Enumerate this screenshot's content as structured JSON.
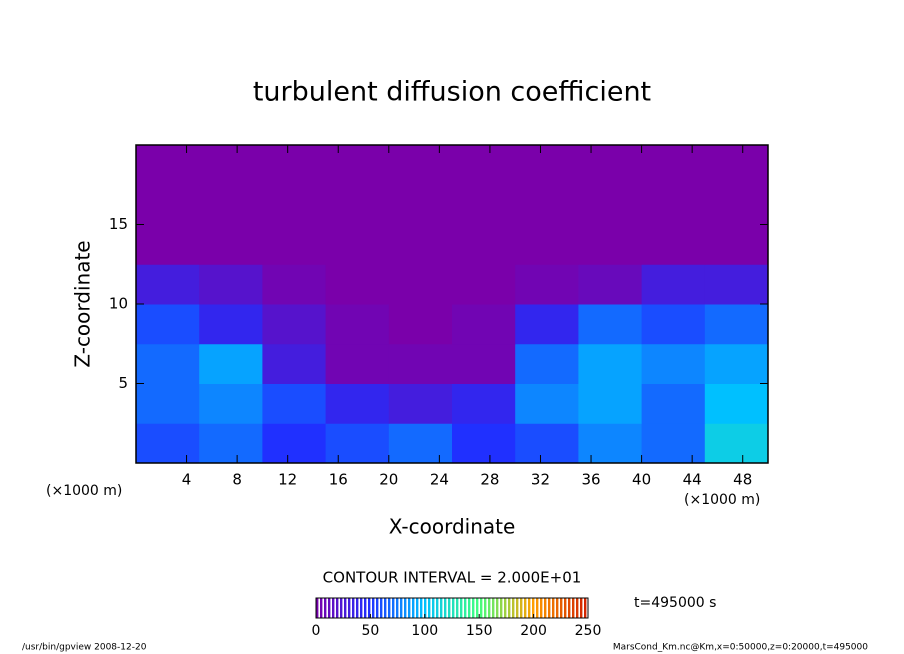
{
  "chart_data": {
    "type": "contour",
    "title": "turbulent diffusion coefficient",
    "xlabel": "X-coordinate",
    "ylabel": "Z-coordinate",
    "x_unit_left": "(×1000 m)",
    "x_unit_right": "(×1000 m)",
    "xlim": [
      0,
      50
    ],
    "ylim": [
      0,
      20
    ],
    "xticks": [
      4,
      8,
      12,
      16,
      20,
      24,
      28,
      32,
      36,
      40,
      44,
      48
    ],
    "yticks": [
      5,
      10,
      15
    ],
    "x": [
      2.5,
      7.5,
      12.5,
      17.5,
      22.5,
      27.5,
      32.5,
      37.5,
      42.5,
      47.5
    ],
    "y": [
      1.25,
      3.75,
      6.25,
      8.75,
      11.25,
      13.75,
      16.25,
      18.75
    ],
    "z": [
      [
        60,
        70,
        50,
        60,
        70,
        50,
        60,
        80,
        70,
        110
      ],
      [
        70,
        80,
        60,
        40,
        30,
        40,
        80,
        90,
        70,
        100
      ],
      [
        70,
        90,
        30,
        5,
        5,
        5,
        70,
        90,
        80,
        90
      ],
      [
        60,
        40,
        20,
        5,
        0,
        5,
        40,
        70,
        60,
        70
      ],
      [
        30,
        20,
        5,
        0,
        0,
        0,
        5,
        10,
        30,
        30
      ],
      [
        0,
        0,
        0,
        0,
        0,
        0,
        0,
        0,
        0,
        0
      ],
      [
        0,
        0,
        0,
        0,
        0,
        0,
        0,
        0,
        0,
        0
      ],
      [
        0,
        0,
        0,
        0,
        0,
        0,
        0,
        0,
        0,
        0
      ]
    ],
    "colors": [
      "#7a00aa",
      "#2030ff",
      "#00c0ff",
      "#40ff80",
      "#ffa000",
      "#d02000"
    ],
    "contour_interval": "CONTOUR INTERVAL = 2.000E+01",
    "colorbar": {
      "lim": [
        0,
        250
      ],
      "ticks": [
        0,
        50,
        100,
        150,
        200,
        250
      ]
    },
    "time_label": "t=495000 s",
    "footer_left": "/usr/bin/gpview  2008-12-20",
    "footer_right": "MarsCond_Km.nc@Km,x=0:50000,z=0:20000,t=495000"
  }
}
